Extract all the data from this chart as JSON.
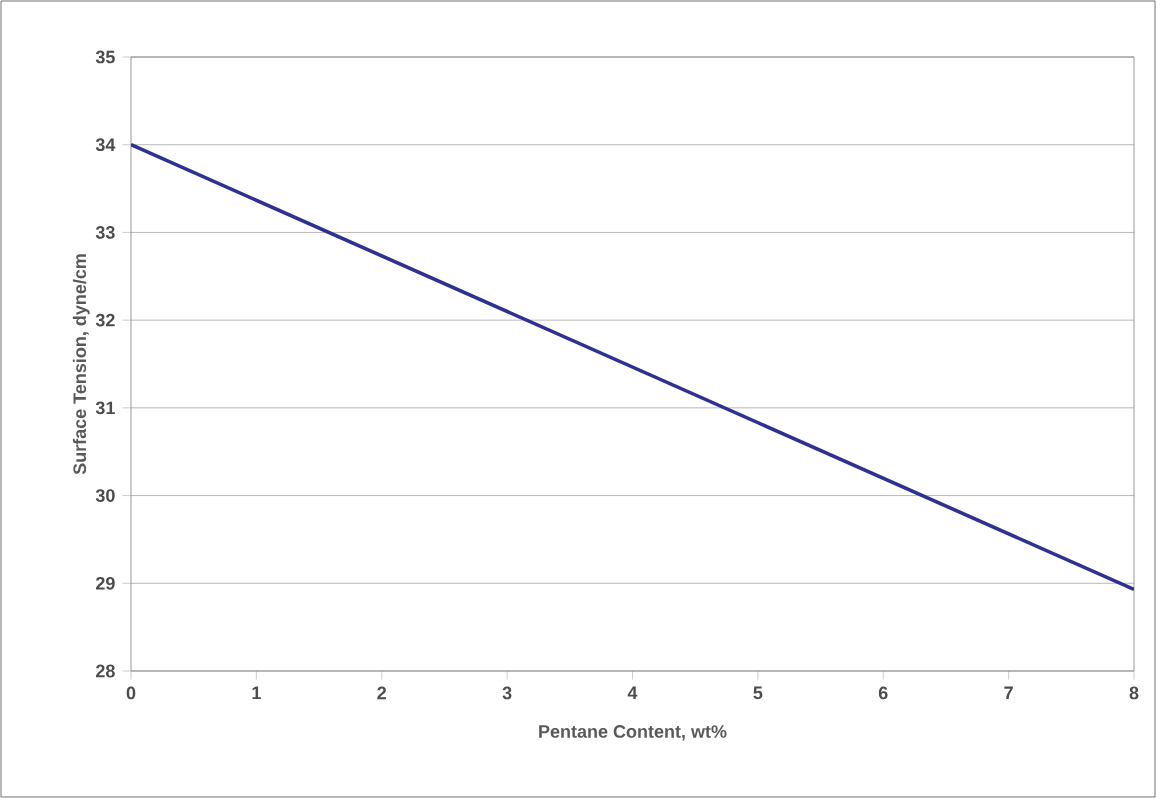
{
  "chart_data": {
    "type": "line",
    "xlabel": "Pentane Content, wt%",
    "ylabel": "Surface Tension, dyne/cm",
    "x": [
      0,
      8
    ],
    "series": [
      {
        "color": "#2e3192",
        "values": [
          34.0,
          28.93
        ]
      }
    ],
    "xlim": [
      0,
      8
    ],
    "xticks": [
      0,
      1,
      2,
      3,
      4,
      5,
      6,
      7,
      8
    ],
    "ylim": [
      28,
      35
    ],
    "yticks": [
      28,
      29,
      30,
      31,
      32,
      33,
      34,
      35
    ],
    "grid": "y",
    "marker": "none",
    "line_style": "solid"
  }
}
